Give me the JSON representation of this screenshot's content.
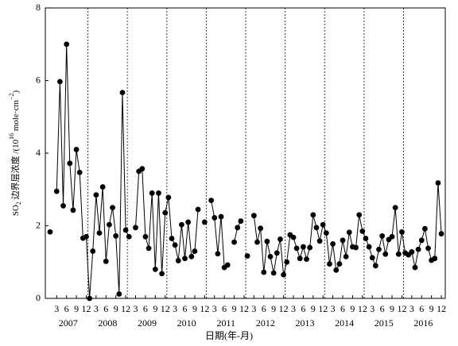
{
  "chart_data": {
    "type": "line",
    "y_label_parts": [
      "SO",
      "2",
      " 边界层浓度 /(10",
      "16",
      " mole·cm",
      "−2",
      ")"
    ],
    "x_label": "日期(年-月)",
    "years": [
      "2007",
      "2008",
      "2009",
      "2010",
      "2011",
      "2012",
      "2013",
      "2014",
      "2015",
      "2016"
    ],
    "categories": [
      null,
      null,
      "3",
      null,
      null,
      "6",
      null,
      null,
      "9",
      null,
      null,
      "12",
      null,
      null,
      "3",
      null,
      null,
      "6",
      null,
      null,
      "9",
      null,
      null,
      "12",
      null,
      null,
      "3",
      null,
      null,
      "6",
      null,
      null,
      "9",
      null,
      null,
      "12",
      null,
      null,
      "3",
      null,
      null,
      "6",
      null,
      null,
      "9",
      null,
      null,
      "12",
      null,
      null,
      "3",
      null,
      null,
      "6",
      null,
      null,
      "9",
      null,
      null,
      "12",
      null,
      null,
      "3",
      null,
      null,
      "6",
      null,
      null,
      "9",
      null,
      null,
      "12",
      null,
      null,
      "3",
      null,
      null,
      "6",
      null,
      null,
      "9",
      null,
      null,
      "12",
      null,
      null,
      "3",
      null,
      null,
      "6",
      null,
      null,
      "9",
      null,
      null,
      "12",
      null,
      null,
      "3",
      null,
      null,
      "6",
      null,
      null,
      "9",
      null,
      null,
      "12",
      null,
      null,
      "3",
      null,
      null,
      "6",
      null,
      null,
      "9",
      null,
      null,
      "12"
    ],
    "values": [
      1.83,
      null,
      2.95,
      5.97,
      2.55,
      7.0,
      3.72,
      2.43,
      4.1,
      3.47,
      1.66,
      1.7,
      0.0,
      1.3,
      2.85,
      1.8,
      3.07,
      1.02,
      2.03,
      2.5,
      1.72,
      0.12,
      5.67,
      1.88,
      1.7,
      null,
      1.95,
      3.5,
      3.57,
      1.7,
      1.38,
      2.9,
      0.8,
      2.9,
      0.68,
      2.36,
      2.78,
      1.65,
      1.47,
      1.04,
      2.03,
      1.1,
      2.1,
      1.15,
      1.3,
      2.45,
      null,
      2.1,
      null,
      2.7,
      2.22,
      1.23,
      2.25,
      0.85,
      0.92,
      null,
      1.55,
      1.95,
      2.13,
      null,
      1.17,
      null,
      2.28,
      1.55,
      1.93,
      0.72,
      1.57,
      1.15,
      0.7,
      1.25,
      1.63,
      0.65,
      1.0,
      1.75,
      1.68,
      1.38,
      1.1,
      1.42,
      1.08,
      1.4,
      2.3,
      1.95,
      1.58,
      2.03,
      1.8,
      0.95,
      1.5,
      0.78,
      0.95,
      1.6,
      1.15,
      1.82,
      1.42,
      1.4,
      2.3,
      1.85,
      1.65,
      1.42,
      1.12,
      0.9,
      1.35,
      1.72,
      1.22,
      1.62,
      1.7,
      2.5,
      1.22,
      1.83,
      1.25,
      1.2,
      1.28,
      0.85,
      1.35,
      1.6,
      1.92,
      1.38,
      1.05,
      1.1,
      3.18,
      1.78
    ],
    "color": "#000000",
    "ylim": [
      0,
      8
    ],
    "yticks": [
      0,
      2,
      4,
      6,
      8
    ]
  }
}
